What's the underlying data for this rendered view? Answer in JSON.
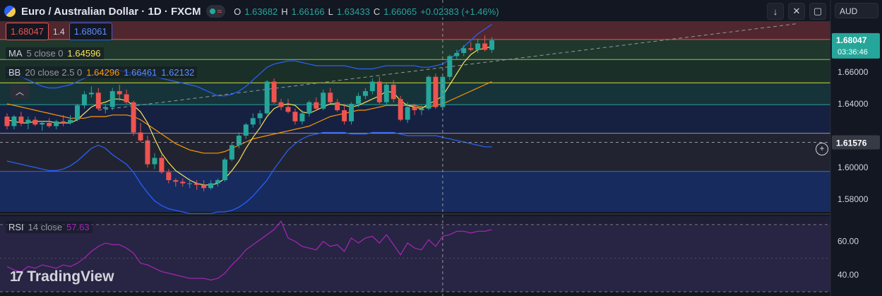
{
  "header": {
    "title": "Euro / Australian Dollar · 1D · FXCM",
    "ohlc": [
      {
        "k": "O",
        "v": "1.63682"
      },
      {
        "k": "H",
        "v": "1.66166"
      },
      {
        "k": "L",
        "v": "1.63433"
      },
      {
        "k": "C",
        "v": "1.66065"
      }
    ],
    "change": "+0.02383 (+1.46%)"
  },
  "quotes": {
    "sell": "1.68047",
    "spread": "1.4",
    "buy": "1.68061"
  },
  "indicators": {
    "ma": {
      "name": "MA",
      "params": "5 close 0",
      "value": "1.64596",
      "color": "#f7e35b"
    },
    "bb": {
      "name": "BB",
      "params": "20 close 2.5 0",
      "basis": "1.64296",
      "upper": "1.66461",
      "lower": "1.62132",
      "basis_color": "#ff9800",
      "band_color": "#2962ff"
    },
    "rsi": {
      "name": "RSI",
      "params": "14 close",
      "value": "57.63",
      "color": "#9c27b0"
    }
  },
  "toolbar": {
    "currency": "AUD"
  },
  "price_axis": {
    "ticks": [
      "1.66000",
      "1.64000",
      "1.60000",
      "1.58000"
    ],
    "last_price": "1.68047",
    "countdown": "03:36:46",
    "crosshair_price": "1.61576"
  },
  "rsi_axis": {
    "ticks": [
      "60.00",
      "40.00"
    ]
  },
  "brand": "TradingView",
  "colors": {
    "bull": "#26a69a",
    "bear": "#ef5350",
    "background": "#131722"
  },
  "chart_data": {
    "type": "candlestick",
    "ylim": [
      1.572,
      1.692
    ],
    "rsi_ylim": [
      30,
      75
    ],
    "candles": [
      [
        1.632,
        1.634,
        1.624,
        1.626
      ],
      [
        1.626,
        1.633,
        1.624,
        1.632
      ],
      [
        1.632,
        1.635,
        1.626,
        1.628
      ],
      [
        1.628,
        1.632,
        1.624,
        1.63
      ],
      [
        1.63,
        1.632,
        1.626,
        1.627
      ],
      [
        1.627,
        1.629,
        1.623,
        1.628
      ],
      [
        1.628,
        1.631,
        1.625,
        1.626
      ],
      [
        1.626,
        1.63,
        1.624,
        1.629
      ],
      [
        1.629,
        1.633,
        1.626,
        1.628
      ],
      [
        1.628,
        1.633,
        1.627,
        1.63
      ],
      [
        1.63,
        1.64,
        1.629,
        1.639
      ],
      [
        1.639,
        1.648,
        1.637,
        1.646
      ],
      [
        1.646,
        1.651,
        1.644,
        1.647
      ],
      [
        1.647,
        1.65,
        1.636,
        1.637
      ],
      [
        1.637,
        1.64,
        1.634,
        1.638
      ],
      [
        1.638,
        1.65,
        1.636,
        1.648
      ],
      [
        1.648,
        1.652,
        1.642,
        1.646
      ],
      [
        1.646,
        1.649,
        1.64,
        1.641
      ],
      [
        1.641,
        1.642,
        1.62,
        1.622
      ],
      [
        1.622,
        1.628,
        1.616,
        1.617
      ],
      [
        1.617,
        1.62,
        1.6,
        1.602
      ],
      [
        1.602,
        1.609,
        1.599,
        1.606
      ],
      [
        1.606,
        1.608,
        1.596,
        1.597
      ],
      [
        1.597,
        1.599,
        1.59,
        1.592
      ],
      [
        1.592,
        1.593,
        1.588,
        1.591
      ],
      [
        1.591,
        1.593,
        1.588,
        1.59
      ],
      [
        1.59,
        1.593,
        1.587,
        1.59
      ],
      [
        1.59,
        1.592,
        1.586,
        1.589
      ],
      [
        1.589,
        1.592,
        1.585,
        1.587
      ],
      [
        1.587,
        1.592,
        1.586,
        1.59
      ],
      [
        1.59,
        1.593,
        1.588,
        1.592
      ],
      [
        1.592,
        1.606,
        1.591,
        1.605
      ],
      [
        1.605,
        1.616,
        1.604,
        1.614
      ],
      [
        1.614,
        1.622,
        1.612,
        1.62
      ],
      [
        1.62,
        1.628,
        1.618,
        1.627
      ],
      [
        1.627,
        1.634,
        1.625,
        1.631
      ],
      [
        1.631,
        1.636,
        1.627,
        1.634
      ],
      [
        1.634,
        1.655,
        1.633,
        1.654
      ],
      [
        1.654,
        1.656,
        1.64,
        1.641
      ],
      [
        1.641,
        1.643,
        1.636,
        1.638
      ],
      [
        1.638,
        1.643,
        1.634,
        1.635
      ],
      [
        1.635,
        1.637,
        1.627,
        1.629
      ],
      [
        1.629,
        1.636,
        1.627,
        1.634
      ],
      [
        1.634,
        1.642,
        1.632,
        1.641
      ],
      [
        1.641,
        1.644,
        1.636,
        1.637
      ],
      [
        1.637,
        1.649,
        1.636,
        1.647
      ],
      [
        1.647,
        1.65,
        1.64,
        1.641
      ],
      [
        1.641,
        1.643,
        1.635,
        1.636
      ],
      [
        1.636,
        1.64,
        1.627,
        1.629
      ],
      [
        1.629,
        1.641,
        1.627,
        1.64
      ],
      [
        1.64,
        1.647,
        1.638,
        1.645
      ],
      [
        1.645,
        1.65,
        1.643,
        1.648
      ],
      [
        1.648,
        1.656,
        1.646,
        1.654
      ],
      [
        1.654,
        1.657,
        1.64,
        1.641
      ],
      [
        1.641,
        1.653,
        1.639,
        1.652
      ],
      [
        1.652,
        1.655,
        1.641,
        1.643
      ],
      [
        1.643,
        1.645,
        1.629,
        1.63
      ],
      [
        1.63,
        1.641,
        1.628,
        1.638
      ],
      [
        1.638,
        1.64,
        1.633,
        1.636
      ],
      [
        1.636,
        1.639,
        1.633,
        1.637
      ],
      [
        1.637,
        1.658,
        1.636,
        1.657
      ],
      [
        1.657,
        1.659,
        1.637,
        1.638
      ],
      [
        1.638,
        1.658,
        1.636,
        1.657
      ],
      [
        1.657,
        1.671,
        1.655,
        1.67
      ],
      [
        1.67,
        1.674,
        1.668,
        1.672
      ],
      [
        1.672,
        1.677,
        1.67,
        1.675
      ],
      [
        1.675,
        1.679,
        1.673,
        1.674
      ],
      [
        1.674,
        1.681,
        1.672,
        1.678
      ],
      [
        1.678,
        1.683,
        1.673,
        1.674
      ],
      [
        1.674,
        1.682,
        1.672,
        1.68
      ]
    ],
    "ma5": [
      1.63,
      1.629,
      1.628,
      1.628,
      1.629,
      1.629,
      1.629,
      1.628,
      1.628,
      1.628,
      1.63,
      1.634,
      1.638,
      1.64,
      1.641,
      1.643,
      1.643,
      1.642,
      1.639,
      1.635,
      1.628,
      1.618,
      1.609,
      1.603,
      1.598,
      1.595,
      1.592,
      1.59,
      1.589,
      1.589,
      1.59,
      1.593,
      1.598,
      1.604,
      1.612,
      1.619,
      1.625,
      1.632,
      1.637,
      1.639,
      1.64,
      1.639,
      1.635,
      1.634,
      1.636,
      1.638,
      1.64,
      1.64,
      1.639,
      1.638,
      1.639,
      1.641,
      1.643,
      1.645,
      1.648,
      1.647,
      1.642,
      1.639,
      1.638,
      1.637,
      1.64,
      1.642,
      1.645,
      1.652,
      1.659,
      1.666,
      1.671,
      1.674,
      1.675,
      1.676
    ],
    "bb_basis": [
      1.64,
      1.639,
      1.638,
      1.637,
      1.636,
      1.635,
      1.634,
      1.633,
      1.632,
      1.631,
      1.631,
      1.631,
      1.632,
      1.632,
      1.632,
      1.633,
      1.633,
      1.633,
      1.632,
      1.63,
      1.627,
      1.624,
      1.621,
      1.618,
      1.615,
      1.613,
      1.611,
      1.61,
      1.609,
      1.609,
      1.609,
      1.61,
      1.612,
      1.614,
      1.616,
      1.618,
      1.619,
      1.62,
      1.621,
      1.622,
      1.623,
      1.624,
      1.625,
      1.626,
      1.628,
      1.63,
      1.632,
      1.633,
      1.634,
      1.635,
      1.636,
      1.636,
      1.637,
      1.638,
      1.639,
      1.639,
      1.639,
      1.639,
      1.639,
      1.638,
      1.638,
      1.639,
      1.64,
      1.642,
      1.644,
      1.646,
      1.648,
      1.65,
      1.652,
      1.654
    ],
    "bb_upper": [
      1.66,
      1.659,
      1.657,
      1.655,
      1.653,
      1.651,
      1.65,
      1.65,
      1.651,
      1.652,
      1.654,
      1.656,
      1.658,
      1.659,
      1.66,
      1.661,
      1.661,
      1.66,
      1.659,
      1.658,
      1.657,
      1.657,
      1.656,
      1.655,
      1.654,
      1.653,
      1.652,
      1.651,
      1.649,
      1.647,
      1.645,
      1.645,
      1.646,
      1.648,
      1.651,
      1.655,
      1.659,
      1.663,
      1.665,
      1.666,
      1.667,
      1.667,
      1.666,
      1.665,
      1.664,
      1.664,
      1.664,
      1.664,
      1.664,
      1.663,
      1.662,
      1.662,
      1.662,
      1.663,
      1.664,
      1.664,
      1.664,
      1.664,
      1.664,
      1.663,
      1.663,
      1.664,
      1.665,
      1.668,
      1.672,
      1.676,
      1.68,
      1.684,
      1.687,
      1.69
    ],
    "bb_lower": [
      1.604,
      1.603,
      1.602,
      1.601,
      1.6,
      1.599,
      1.598,
      1.598,
      1.599,
      1.601,
      1.604,
      1.608,
      1.612,
      1.614,
      1.612,
      1.608,
      1.605,
      1.602,
      1.597,
      1.59,
      1.584,
      1.579,
      1.576,
      1.574,
      1.573,
      1.572,
      1.571,
      1.571,
      1.571,
      1.571,
      1.572,
      1.572,
      1.573,
      1.575,
      1.578,
      1.582,
      1.587,
      1.592,
      1.599,
      1.605,
      1.611,
      1.615,
      1.618,
      1.62,
      1.621,
      1.622,
      1.622,
      1.622,
      1.622,
      1.621,
      1.621,
      1.621,
      1.622,
      1.622,
      1.622,
      1.622,
      1.621,
      1.62,
      1.62,
      1.62,
      1.62,
      1.62,
      1.619,
      1.618,
      1.617,
      1.616,
      1.615,
      1.614,
      1.613,
      1.613
    ],
    "rsi": [
      45,
      43,
      42,
      45,
      44,
      46,
      45,
      44,
      46,
      45,
      47,
      50,
      54,
      57,
      59,
      58,
      58,
      56,
      53,
      47,
      46,
      44,
      42,
      41,
      40,
      39,
      38,
      38,
      38,
      37,
      38,
      41,
      46,
      50,
      55,
      58,
      61,
      64,
      67,
      72,
      62,
      60,
      57,
      56,
      55,
      60,
      57,
      58,
      54,
      62,
      59,
      62,
      63,
      59,
      64,
      58,
      52,
      59,
      56,
      55,
      61,
      57,
      63,
      64,
      66,
      66,
      65,
      66,
      66,
      67
    ],
    "levels": [
      1.6805,
      1.6679,
      1.6532,
      1.6395,
      1.6215,
      1.5975
    ]
  }
}
